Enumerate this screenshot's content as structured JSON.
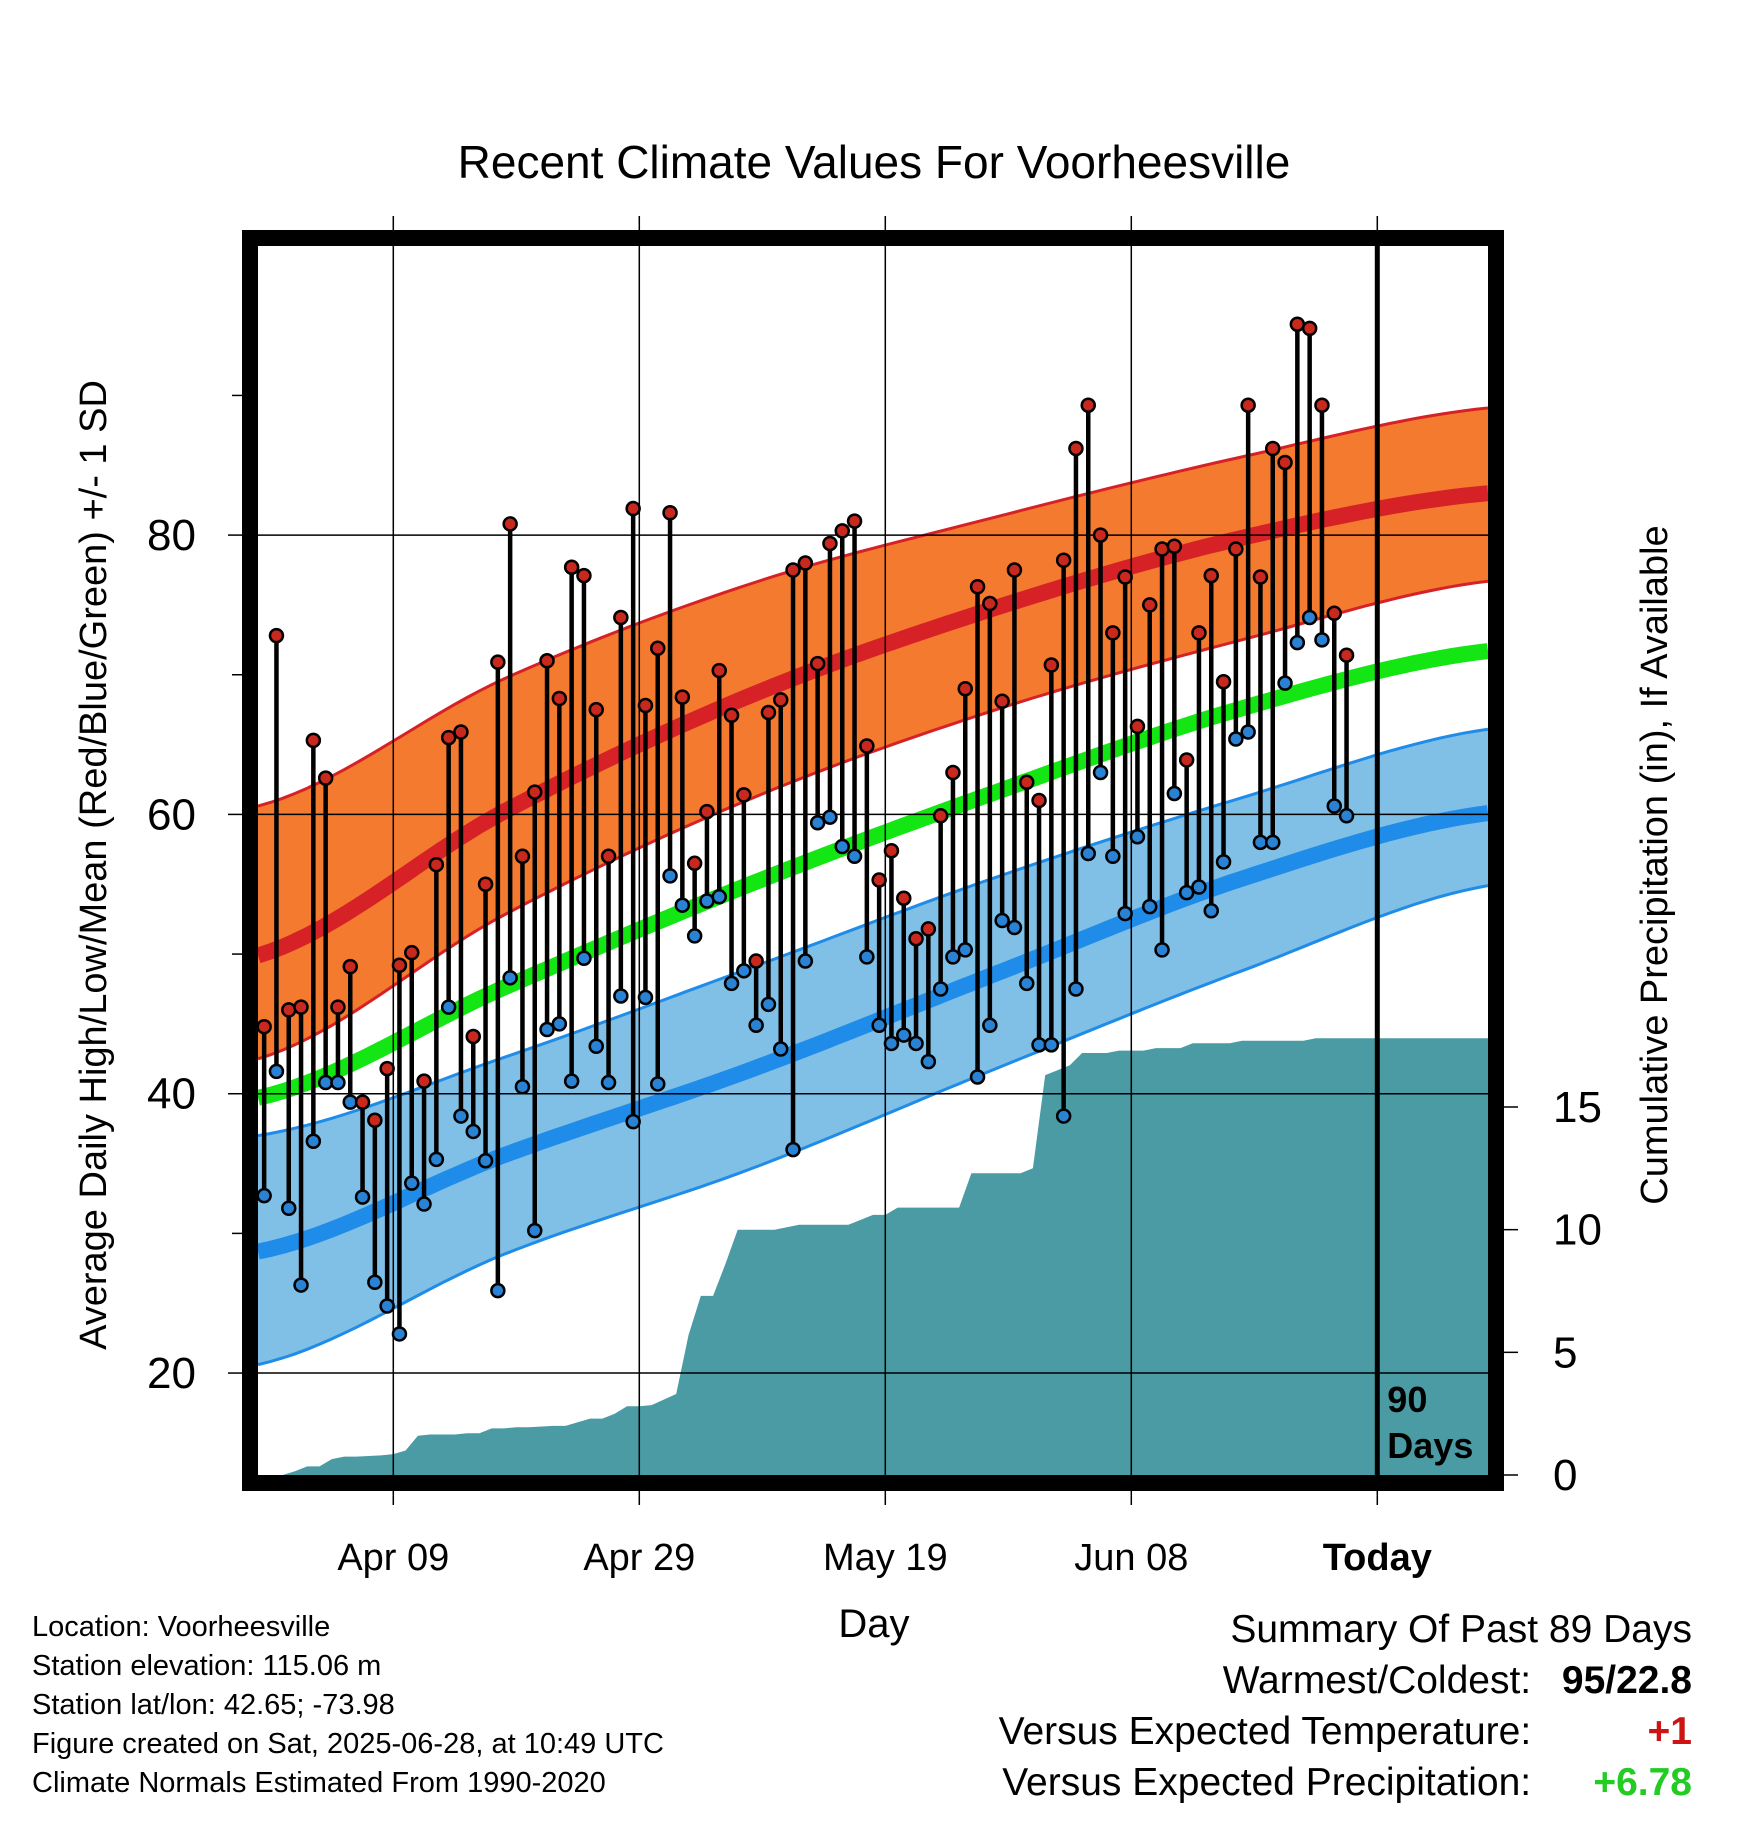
{
  "chart_data": {
    "type": "line",
    "title": "Recent Climate Values For Voorheesville",
    "xlabel": "Day",
    "ylabel": "Average Daily High/Low/Mean (Red/Blue/Green) +/- 1 SD",
    "y2label": "Cumulative Precipitation (in), If Available",
    "x_tick_labels": [
      "Apr 09",
      "Apr 29",
      "May 19",
      "Jun 08",
      "Today"
    ],
    "x_tick_days": [
      11,
      31,
      51,
      71,
      91
    ],
    "y_ticks": [
      20,
      40,
      60,
      80
    ],
    "y_minor_ticks": [
      30,
      50,
      70,
      90
    ],
    "ylim": [
      12.7,
      100.7
    ],
    "y2_ticks": [
      0,
      5,
      10,
      15
    ],
    "y2lim": [
      0,
      15
    ],
    "x_range_days": [
      0,
      100
    ],
    "today_marker": {
      "day": 91,
      "label_line1": "90",
      "label_line2": "Days"
    },
    "grid": true,
    "colors": {
      "high_band": "#f47a30",
      "high_mean": "#d62226",
      "low_band": "#80bfe6",
      "low_mean": "#1e8ce8",
      "mean": "#14e614",
      "precip": "#4a9ba3",
      "high_dot": "#c8281e",
      "low_dot": "#2a82d4"
    },
    "normals": {
      "days": [
        0,
        20,
        40,
        60,
        80,
        100
      ],
      "high_mean": [
        49.9,
        60.2,
        68.5,
        74.8,
        79.8,
        83.0
      ],
      "high_upper": [
        60.6,
        69.7,
        76.5,
        81.3,
        85.6,
        89.1
      ],
      "high_lower": [
        42.5,
        52.8,
        61.1,
        67.5,
        72.5,
        76.7
      ],
      "avg_mean": [
        39.7,
        47.6,
        55.0,
        61.6,
        67.6,
        71.7
      ],
      "low_mean": [
        28.7,
        35.6,
        41.7,
        48.6,
        55.4,
        60.1
      ],
      "low_upper": [
        37.0,
        42.6,
        49.0,
        55.5,
        61.2,
        66.1
      ],
      "low_lower": [
        20.6,
        28.5,
        34.6,
        41.8,
        48.8,
        54.9
      ]
    },
    "series": [
      {
        "name": "Daily High",
        "days": [
          0,
          1,
          2,
          3,
          4,
          5,
          6,
          7,
          8,
          9,
          10,
          11,
          12,
          13,
          14,
          15,
          16,
          17,
          18,
          19,
          20,
          21,
          22,
          23,
          24,
          25,
          26,
          27,
          28,
          29,
          30,
          31,
          32,
          33,
          34,
          35,
          36,
          37,
          38,
          39,
          40,
          41,
          42,
          43,
          44,
          45,
          46,
          47,
          48,
          49,
          50,
          51,
          52,
          53,
          54,
          55,
          56,
          57,
          58,
          59,
          60,
          61,
          62,
          63,
          64,
          65,
          66,
          67,
          68,
          69,
          70,
          71,
          72,
          73,
          74,
          75,
          76,
          77,
          78,
          79,
          80,
          81,
          82,
          83,
          84,
          85,
          86,
          87,
          88,
          89
        ],
        "values": [
          44.8,
          72.8,
          46.0,
          46.2,
          65.3,
          62.6,
          46.2,
          49.1,
          39.4,
          38.1,
          41.8,
          49.2,
          50.1,
          40.9,
          56.4,
          65.5,
          65.9,
          44.1,
          55.0,
          70.9,
          80.8,
          57.0,
          61.6,
          71.0,
          68.3,
          77.7,
          77.1,
          67.5,
          57.0,
          74.1,
          81.9,
          67.8,
          71.9,
          81.6,
          68.4,
          56.5,
          60.2,
          70.3,
          67.1,
          61.4,
          49.5,
          67.3,
          68.2,
          77.5,
          78.0,
          70.8,
          79.4,
          80.3,
          81.0,
          64.9,
          55.3,
          57.4,
          54.0,
          51.1,
          51.8,
          59.9,
          63.0,
          69.0,
          76.3,
          75.1,
          68.1,
          77.5,
          62.3,
          61.0,
          70.7,
          78.2,
          86.2,
          89.3,
          80.0,
          73.0,
          77.0,
          66.3,
          75.0,
          79.0,
          79.2,
          63.9,
          73.0,
          77.1,
          69.5,
          79.0,
          89.3,
          77.0,
          86.2,
          85.2,
          95.1,
          94.8,
          89.3,
          74.4,
          71.4,
          null
        ]
      },
      {
        "name": "Daily Low",
        "days": [
          0,
          1,
          2,
          3,
          4,
          5,
          6,
          7,
          8,
          9,
          10,
          11,
          12,
          13,
          14,
          15,
          16,
          17,
          18,
          19,
          20,
          21,
          22,
          23,
          24,
          25,
          26,
          27,
          28,
          29,
          30,
          31,
          32,
          33,
          34,
          35,
          36,
          37,
          38,
          39,
          40,
          41,
          42,
          43,
          44,
          45,
          46,
          47,
          48,
          49,
          50,
          51,
          52,
          53,
          54,
          55,
          56,
          57,
          58,
          59,
          60,
          61,
          62,
          63,
          64,
          65,
          66,
          67,
          68,
          69,
          70,
          71,
          72,
          73,
          74,
          75,
          76,
          77,
          78,
          79,
          80,
          81,
          82,
          83,
          84,
          85,
          86,
          87,
          88,
          89
        ],
        "values": [
          32.7,
          41.6,
          31.8,
          26.3,
          36.6,
          40.8,
          40.8,
          39.4,
          32.6,
          26.5,
          24.8,
          22.8,
          33.6,
          32.1,
          35.3,
          46.2,
          38.4,
          37.3,
          35.2,
          25.9,
          48.3,
          40.5,
          30.2,
          44.6,
          45.0,
          40.9,
          49.7,
          43.4,
          40.8,
          47.0,
          38.0,
          46.9,
          40.7,
          55.6,
          53.5,
          51.3,
          53.8,
          54.1,
          47.9,
          48.8,
          44.9,
          46.4,
          43.2,
          36.0,
          49.5,
          59.4,
          59.8,
          57.7,
          57.0,
          49.8,
          44.9,
          43.6,
          44.2,
          43.6,
          42.3,
          47.5,
          49.8,
          50.3,
          41.2,
          44.9,
          52.4,
          51.9,
          47.9,
          43.5,
          43.5,
          38.4,
          47.5,
          57.2,
          63.0,
          57.0,
          52.9,
          58.4,
          53.4,
          50.3,
          61.5,
          54.4,
          54.8,
          53.1,
          56.6,
          65.4,
          65.9,
          58.0,
          58.0,
          69.4,
          72.3,
          74.1,
          72.5,
          60.6,
          59.9,
          null
        ]
      },
      {
        "name": "Cumulative Precipitation",
        "days": [
          0,
          2,
          3,
          4,
          5,
          6,
          7,
          8,
          10,
          11,
          12,
          13,
          14,
          16,
          17,
          18,
          19,
          20,
          21,
          22,
          24,
          25,
          27,
          28,
          29,
          30,
          31,
          32,
          34,
          35,
          36,
          37,
          38,
          39,
          40,
          41,
          42,
          43,
          44,
          45,
          46,
          47,
          48,
          49,
          50,
          51,
          52,
          53,
          54,
          55,
          56,
          57,
          58,
          59,
          60,
          61,
          62,
          63,
          64,
          65,
          66,
          67,
          68,
          69,
          70,
          71,
          72,
          73,
          74,
          75,
          76,
          77,
          78,
          79,
          80,
          81,
          82,
          83,
          84,
          85,
          86,
          87,
          88,
          89,
          90,
          91,
          100
        ],
        "values": [
          0.0,
          0.0,
          0.15,
          0.35,
          0.35,
          0.65,
          0.75,
          0.75,
          0.8,
          0.85,
          1.0,
          1.6,
          1.65,
          1.65,
          1.7,
          1.7,
          1.9,
          1.9,
          1.95,
          1.95,
          2.0,
          2.0,
          2.3,
          2.3,
          2.5,
          2.8,
          2.8,
          2.85,
          3.3,
          5.7,
          7.3,
          7.3,
          8.6,
          10.0,
          10.0,
          10.0,
          10.0,
          10.1,
          10.2,
          10.2,
          10.2,
          10.2,
          10.2,
          10.4,
          10.6,
          10.6,
          10.9,
          10.9,
          10.9,
          10.9,
          10.9,
          10.9,
          12.3,
          12.3,
          12.3,
          12.3,
          12.3,
          12.5,
          16.3,
          16.5,
          16.7,
          17.2,
          17.2,
          17.2,
          17.3,
          17.3,
          17.3,
          17.4,
          17.4,
          17.4,
          17.6,
          17.6,
          17.6,
          17.6,
          17.7,
          17.7,
          17.7,
          17.7,
          17.7,
          17.7,
          17.8,
          17.8,
          17.8,
          17.8,
          17.8,
          17.8,
          17.8
        ]
      }
    ]
  },
  "info": {
    "location": "Location: Voorheesville",
    "elevation": "Station elevation: 115.06 m",
    "latlon": "Station lat/lon: 42.65; -73.98",
    "created": "Figure created on Sat, 2025-06-28, at 10:49 UTC",
    "normals": "Climate Normals Estimated From 1990-2020"
  },
  "summary": {
    "heading": "Summary Of Past 89 Days",
    "warmest_coldest_label": "Warmest/Coldest:",
    "warmest_coldest_value": "95/22.8",
    "temp_label": "Versus Expected Temperature:",
    "temp_value": "+1",
    "precip_label": "Versus Expected Precipitation:",
    "precip_value": "+6.78"
  }
}
